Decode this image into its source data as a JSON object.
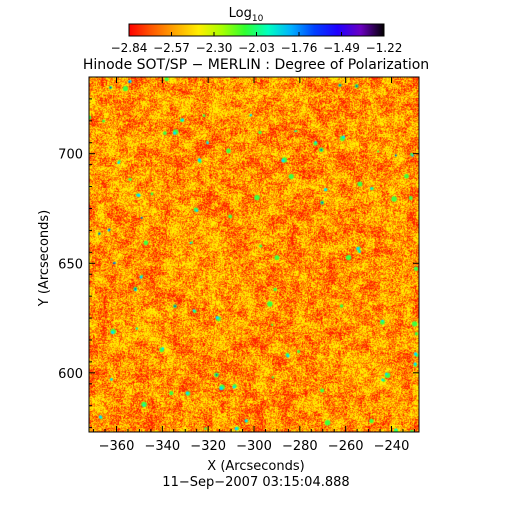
{
  "colorbar": {
    "title_base": "Log",
    "title_sub": "10",
    "ticks": [
      "−2.84",
      "−2.57",
      "−2.30",
      "−2.03",
      "−1.76",
      "−1.49",
      "−1.22"
    ],
    "stops": [
      "#ff0000",
      "#ff5a00",
      "#ffa800",
      "#ffee00",
      "#a8ff00",
      "#30ff30",
      "#00ffc0",
      "#00b0ff",
      "#0040ff",
      "#2000ff",
      "#6a00c0",
      "#000000"
    ]
  },
  "figure": {
    "title": "Hinode SOT/SP − MERLIN : Degree of Polarization",
    "xlabel": "X (Arcseconds)",
    "ylabel": "Y (Arcseconds)",
    "date": "11−Sep−2007 03:15:04.888",
    "xticks": [
      "−360",
      "−340",
      "−320",
      "−300",
      "−280",
      "−260",
      "−240"
    ],
    "yticks": [
      "700",
      "650",
      "600"
    ],
    "xrange": [
      -372,
      -228
    ],
    "yrange": [
      573,
      735
    ],
    "map_colors": {
      "base": "#ff1e00",
      "orange": "#ff6a00",
      "amber": "#ffb000",
      "yellow": "#ffee00",
      "green": "#40ff40",
      "cyan": "#00e0ff",
      "blue": "#0030ff"
    }
  }
}
